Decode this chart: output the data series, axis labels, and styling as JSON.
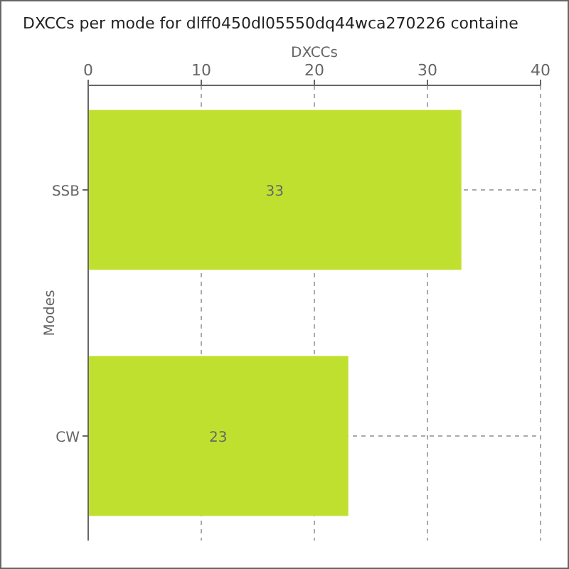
{
  "chart_data": {
    "type": "bar",
    "orientation": "horizontal",
    "title": "DXCCs per mode for dlff0450dl05550dq44wca270226 containe",
    "xlabel": "DXCCs",
    "ylabel": "Modes",
    "categories": [
      "SSB",
      "CW"
    ],
    "values": [
      33,
      23
    ],
    "color": "#c0e030",
    "xlim": [
      0,
      40
    ],
    "xticks": [
      0,
      10,
      20,
      30,
      40
    ],
    "grid": true,
    "data_labels": true
  }
}
